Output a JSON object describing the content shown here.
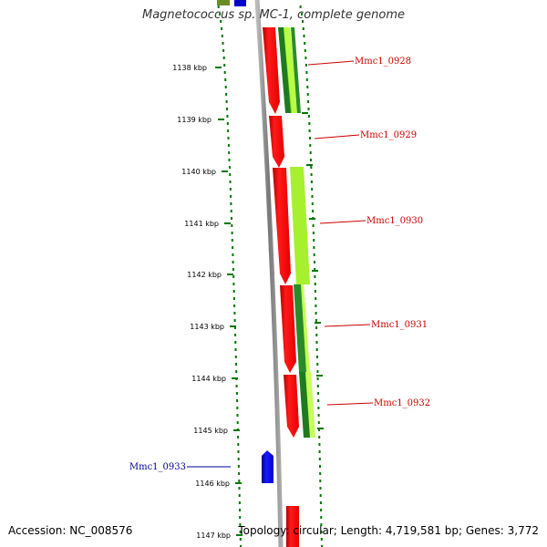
{
  "title": "Magnetococcus sp. MC-1, complete genome",
  "footer": {
    "accession": "Accession: NC_008576",
    "stats": "Topology: circular; Length: 4,719,581 bp; Genes: 3,772"
  },
  "colors": {
    "forward_gene": "#ff0000",
    "reverse_gene": "#0000ff",
    "feature_light": "#aaff33",
    "feature_dark": "#228b22",
    "ticks": "#007700",
    "backbone": "#888888",
    "forward_label": "#cc0000",
    "reverse_label": "#000099"
  },
  "axis": {
    "unit": "kbp",
    "ticks": [
      {
        "label": "1138 kbp"
      },
      {
        "label": "1139 kbp"
      },
      {
        "label": "1140 kbp"
      },
      {
        "label": "1141 kbp"
      },
      {
        "label": "1142 kbp"
      },
      {
        "label": "1143 kbp"
      },
      {
        "label": "1144 kbp"
      },
      {
        "label": "1145 kbp"
      },
      {
        "label": "1146 kbp"
      },
      {
        "label": "1147 kbp"
      }
    ]
  },
  "genes": [
    {
      "label": "Mmc1_0928",
      "strand": "+"
    },
    {
      "label": "Mmc1_0929",
      "strand": "+"
    },
    {
      "label": "Mmc1_0930",
      "strand": "+"
    },
    {
      "label": "Mmc1_0931",
      "strand": "+"
    },
    {
      "label": "Mmc1_0932",
      "strand": "+"
    },
    {
      "label": "Mmc1_0933",
      "strand": "-"
    }
  ]
}
